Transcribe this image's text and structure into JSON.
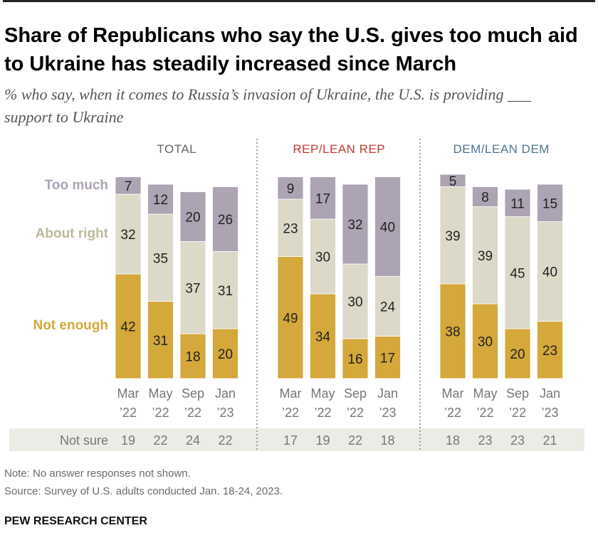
{
  "title": "Share of Republicans who say the U.S. gives too much aid to Ukraine has steadily increased since March",
  "subtitle": "% who say, when it comes to Russia’s invasion of Ukraine, the U.S. is providing ___ support to Ukraine",
  "note": "Note: No answer responses not shown.",
  "source": "Source: Survey of U.S. adults conducted Jan. 18-24, 2023.",
  "brand": "PEW RESEARCH CENTER",
  "chart_data": {
    "type": "bar",
    "stacked": true,
    "categories": [
      [
        "Mar",
        "’22"
      ],
      [
        "May",
        "’22"
      ],
      [
        "Sep",
        "’22"
      ],
      [
        "Jan",
        "’23"
      ]
    ],
    "series_labels": {
      "too_much": "Too much",
      "about_right": "About right",
      "not_enough": "Not enough"
    },
    "colors": {
      "too_much": "#aca3b3",
      "about_right": "#dcd9c8",
      "not_enough": "#d4a83a",
      "rep": "#c23b2e",
      "dem": "#4e7390",
      "not_sure_bg": "#ecebe5"
    },
    "not_sure_label": "Not sure",
    "panels": [
      {
        "name": "TOTAL",
        "not_enough": [
          42,
          31,
          18,
          20
        ],
        "about_right": [
          32,
          35,
          37,
          31
        ],
        "too_much": [
          7,
          12,
          20,
          26
        ],
        "not_sure": [
          19,
          22,
          24,
          22
        ]
      },
      {
        "name": "REP/LEAN REP",
        "not_enough": [
          49,
          34,
          16,
          17
        ],
        "about_right": [
          23,
          30,
          30,
          24
        ],
        "too_much": [
          9,
          17,
          32,
          40
        ],
        "not_sure": [
          17,
          19,
          22,
          18
        ]
      },
      {
        "name": "DEM/LEAN DEM",
        "not_enough": [
          38,
          30,
          20,
          23
        ],
        "about_right": [
          39,
          39,
          45,
          40
        ],
        "too_much": [
          5,
          8,
          11,
          15
        ],
        "not_sure": [
          18,
          23,
          23,
          21
        ]
      }
    ]
  }
}
